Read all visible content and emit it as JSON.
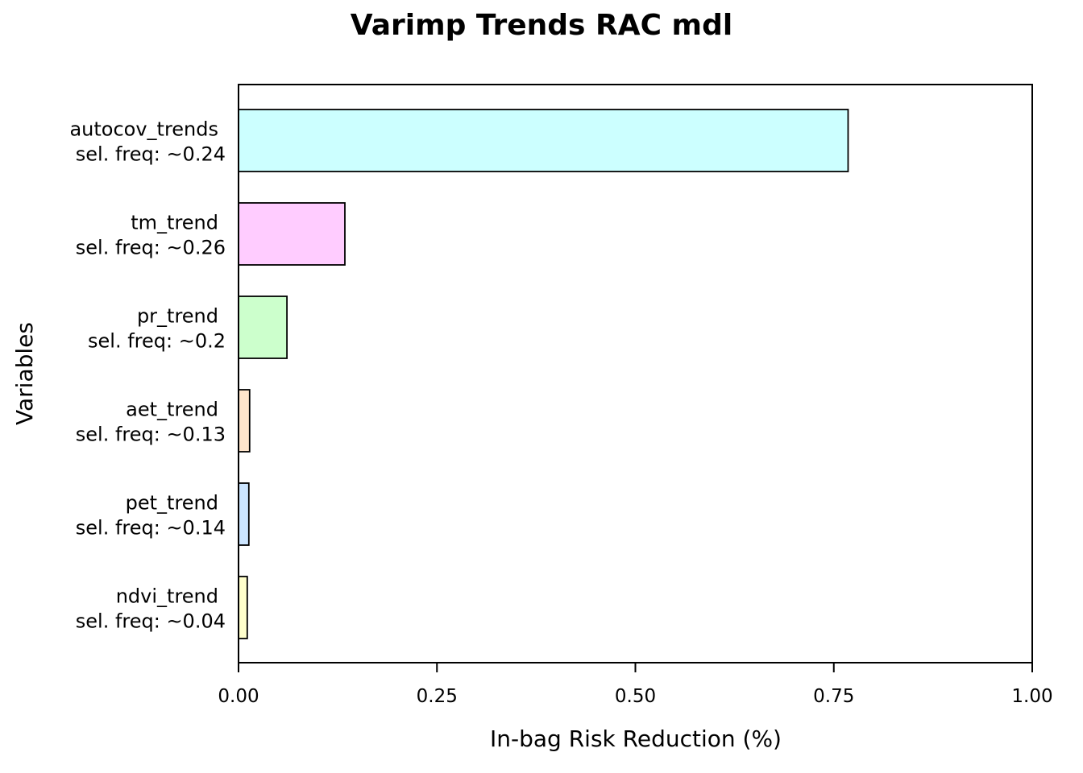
{
  "chart_data": {
    "type": "bar",
    "orientation": "horizontal",
    "title": "Varimp Trends RAC mdl",
    "xlabel": "In-bag Risk Reduction (%)",
    "ylabel": "Variables",
    "xlim": [
      0,
      1
    ],
    "xticks": [
      "0.00",
      "0.25",
      "0.50",
      "0.75",
      "1.00"
    ],
    "xtick_values": [
      0,
      0.25,
      0.5,
      0.75,
      1.0
    ],
    "grid": false,
    "categories": [
      {
        "name": "autocov_trends",
        "freq_label": "sel. freq: ~0.24"
      },
      {
        "name": "tm_trend",
        "freq_label": "sel. freq: ~0.26"
      },
      {
        "name": "pr_trend",
        "freq_label": "sel. freq: ~0.2"
      },
      {
        "name": "aet_trend",
        "freq_label": "sel. freq: ~0.13"
      },
      {
        "name": "pet_trend",
        "freq_label": "sel. freq: ~0.14"
      },
      {
        "name": "ndvi_trend",
        "freq_label": "sel. freq: ~0.04"
      }
    ],
    "values": [
      0.768,
      0.134,
      0.061,
      0.014,
      0.013,
      0.011
    ],
    "colors": [
      "#ccffff",
      "#ffccff",
      "#ccffcc",
      "#ffe5cc",
      "#cce5ff",
      "#ffffcc"
    ]
  }
}
